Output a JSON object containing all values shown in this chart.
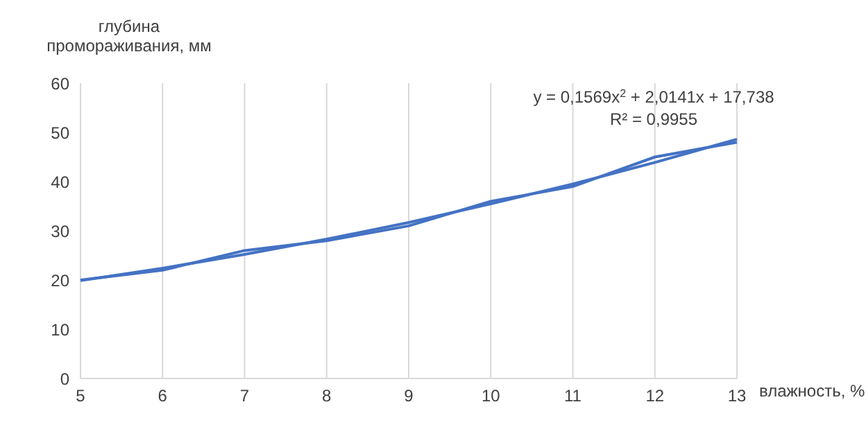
{
  "chart_data": {
    "type": "line",
    "ylabel": "глубина промораживания, мм",
    "xlabel": "влажность, %",
    "categories": [
      "5",
      "6",
      "7",
      "8",
      "9",
      "10",
      "11",
      "12",
      "13"
    ],
    "series": [
      {
        "color": "#4472c4",
        "values": [
          20,
          22,
          26,
          28,
          31,
          36,
          39,
          45,
          48
        ]
      },
      {
        "type": "line",
        "color": "#4472c4",
        "values": [
          19.9,
          22.4,
          25.2,
          28.3,
          31.7,
          35.5,
          39.5,
          43.9,
          48.6
        ]
      }
    ],
    "ylim": [
      0,
      60
    ],
    "yticks": [
      0,
      10,
      20,
      30,
      40,
      50,
      60
    ],
    "grid": "x",
    "marker": "none",
    "line_style": "solid",
    "annotations": [
      "y = 0,1569x$^{2}$ + 2,0141x + 17,738",
      "R² = 0,9955"
    ]
  }
}
